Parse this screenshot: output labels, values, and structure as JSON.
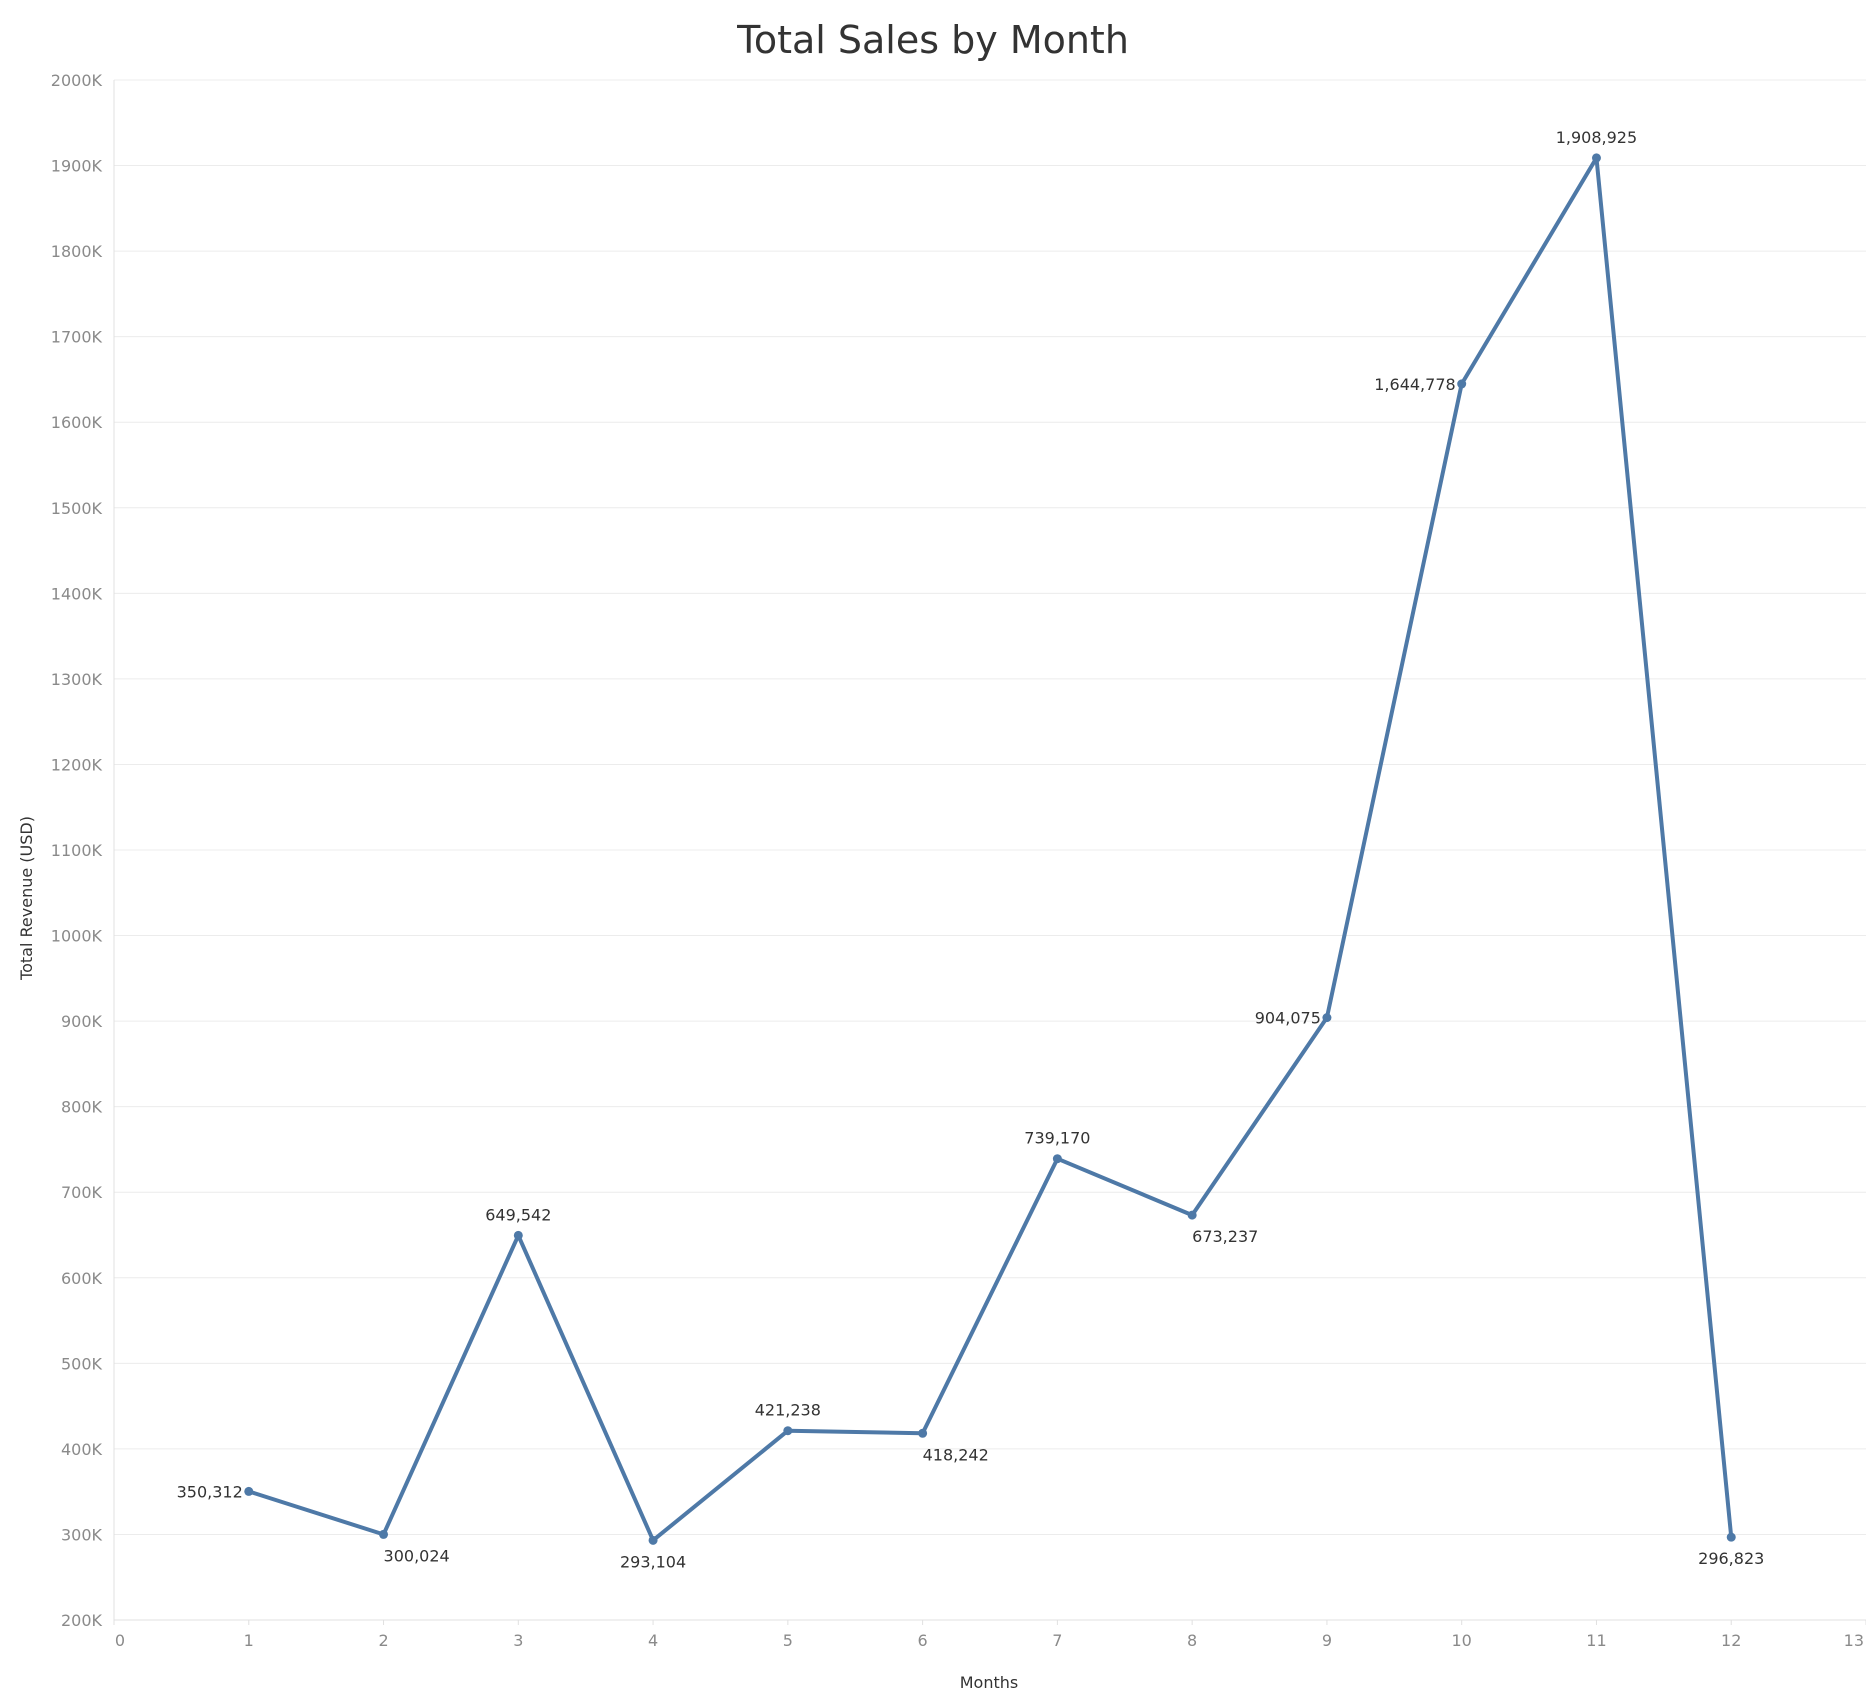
{
  "chart_data": {
    "type": "line",
    "title": "Total Sales by Month",
    "xlabel": "Months",
    "ylabel": "Total Revenue (USD)",
    "xlim": [
      0,
      13
    ],
    "ylim": [
      200000,
      2000000
    ],
    "x_ticks": [
      "0",
      "1",
      "2",
      "3",
      "4",
      "5",
      "6",
      "7",
      "8",
      "9",
      "10",
      "11",
      "12",
      "13"
    ],
    "y_ticks": [
      "200K",
      "300K",
      "400K",
      "500K",
      "600K",
      "700K",
      "800K",
      "900K",
      "1000K",
      "1100K",
      "1200K",
      "1300K",
      "1400K",
      "1500K",
      "1600K",
      "1700K",
      "1800K",
      "1900K",
      "2000K"
    ],
    "grid": true,
    "legend": "none",
    "series": [
      {
        "color": "#4e79a7",
        "x": [
          1,
          2,
          3,
          4,
          5,
          6,
          7,
          8,
          9,
          10,
          11,
          12
        ],
        "values": [
          350312,
          300024,
          649542,
          293104,
          421238,
          418242,
          739170,
          673237,
          904075,
          1644778,
          1908925,
          296823
        ],
        "labels": [
          "350,312",
          "300,024",
          "649,542",
          "293,104",
          "421,238",
          "418,242",
          "739,170",
          "673,237",
          "904,075",
          "1,644,778",
          "1,908,925",
          "296,823"
        ]
      }
    ]
  }
}
